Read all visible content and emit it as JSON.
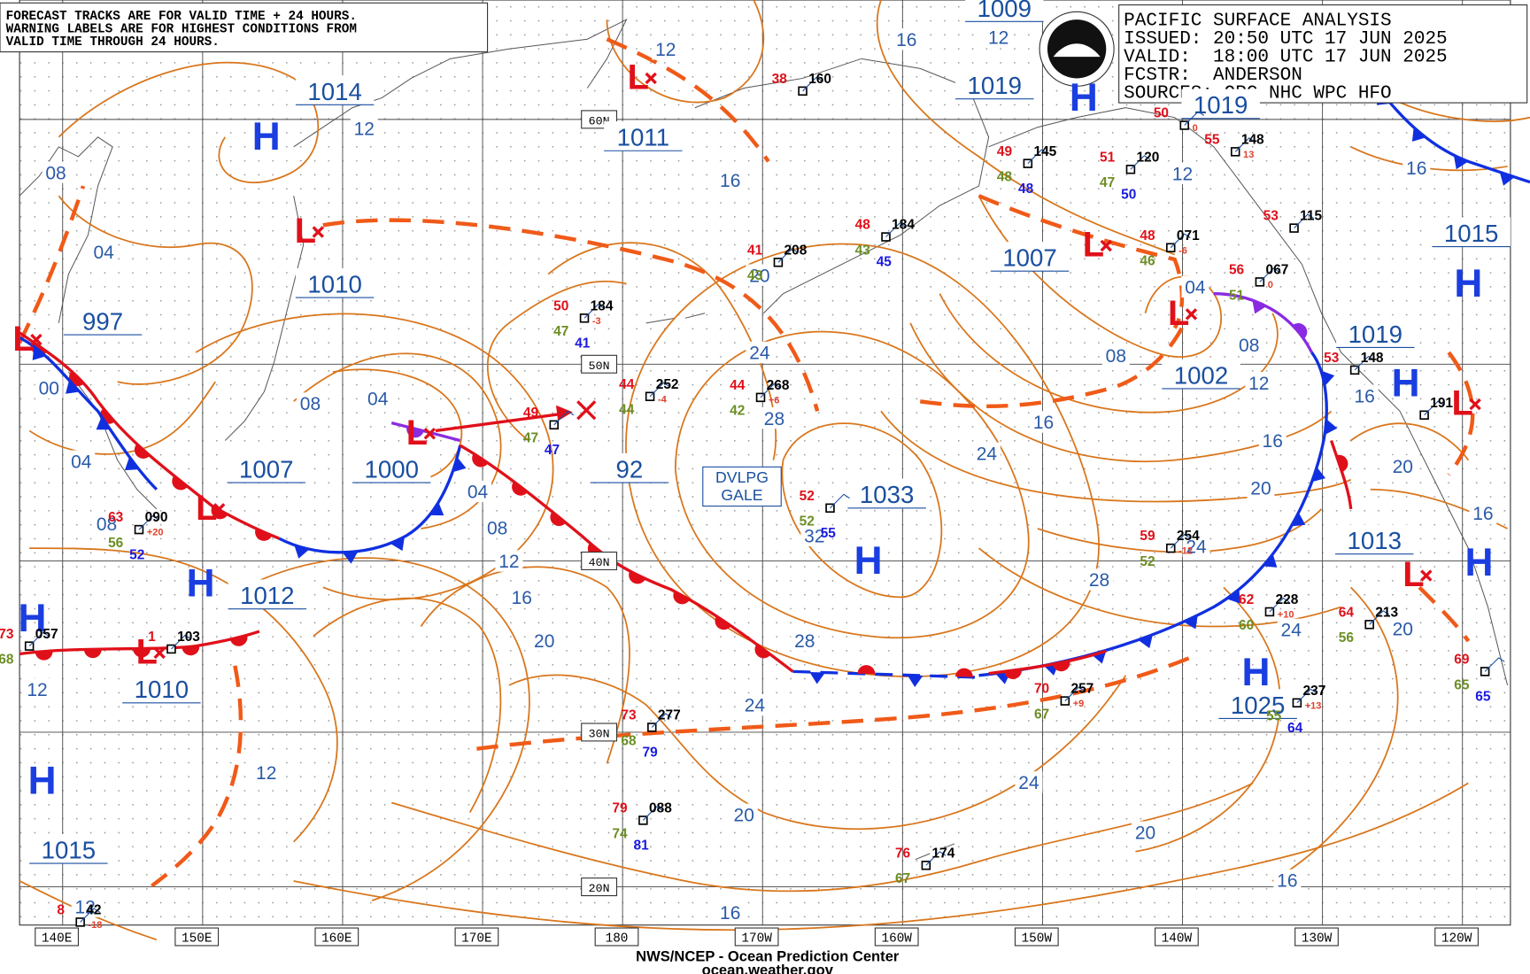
{
  "notice": {
    "lines": [
      "FORECAST TRACKS ARE FOR VALID TIME + 24 HOURS.",
      "WARNING LABELS ARE FOR HIGHEST CONDITIONS FROM",
      "VALID TIME THROUGH 24 HOURS."
    ]
  },
  "header": {
    "lines": [
      "PACIFIC SURFACE ANALYSIS",
      "ISSUED: 20:50 UTC 17 JUN 2025",
      "VALID:  18:00 UTC 17 JUN 2025",
      "FCSTR:  ANDERSON",
      "SOURCES: OPC NHC WPC HFO"
    ]
  },
  "footer": {
    "agency": "NWS/NCEP - Ocean Prediction Center",
    "url": "ocean.weather.gov"
  },
  "latitudes": [
    "60N",
    "50N",
    "40N",
    "30N",
    "20N"
  ],
  "longitudes": [
    "140E",
    "150E",
    "160E",
    "170E",
    "180",
    "170W",
    "160W",
    "150W",
    "140W",
    "130W",
    "120W"
  ],
  "pressures": [
    "1014",
    "1010",
    "997",
    "1007",
    "1000",
    "1012",
    "1010",
    "1015",
    "1011",
    "1009",
    "1019",
    "1007",
    "1002",
    "1019",
    "1015",
    "1019",
    "1013",
    "1033",
    "1025",
    "92"
  ],
  "highs": [
    "H",
    "H",
    "H",
    "H",
    "H",
    "H",
    "H",
    "H",
    "H",
    "H"
  ],
  "lows": [
    "L",
    "L",
    "L",
    "L",
    "L",
    "L",
    "L",
    "L",
    "L",
    "L"
  ],
  "isobar_labels": [
    "08",
    "04",
    "00",
    "04",
    "08",
    "12",
    "08",
    "04",
    "04",
    "08",
    "12",
    "16",
    "20",
    "12",
    "16",
    "16",
    "12",
    "20",
    "24",
    "28",
    "32",
    "28",
    "24",
    "20",
    "16",
    "24",
    "16",
    "08",
    "04",
    "08",
    "12",
    "16",
    "20",
    "24",
    "28",
    "24",
    "20",
    "20",
    "16",
    "16",
    "16",
    "12",
    "12",
    "12",
    "12",
    "24",
    "20",
    "16"
  ],
  "warning": {
    "lines": [
      "DVLPG",
      "GALE"
    ]
  },
  "stations": [
    {
      "temperature": "50",
      "pressure": "184",
      "tendency": "-3",
      "dewpoint": "47",
      "extra": "41"
    },
    {
      "temperature": "44",
      "pressure": "268",
      "tendency": "+6",
      "dewpoint": "42"
    },
    {
      "temperature": "44",
      "pressure": "252",
      "tendency": "-4",
      "dewpoint": "44"
    },
    {
      "temperature": "41",
      "pressure": "208",
      "dewpoint": "43"
    },
    {
      "temperature": "48",
      "pressure": "184",
      "dewpoint": "43",
      "extra": "45"
    },
    {
      "temperature": "38",
      "pressure": "160"
    },
    {
      "temperature": "49",
      "pressure": "145",
      "dewpoint": "48",
      "extra": "48"
    },
    {
      "temperature": "51",
      "pressure": "120",
      "dewpoint": "47",
      "extra": "50"
    },
    {
      "temperature": "48",
      "pressure": "071",
      "tendency": "-6",
      "dewpoint": "46"
    },
    {
      "temperature": "56",
      "pressure": "067",
      "tendency": "0",
      "dewpoint": "51"
    },
    {
      "temperature": "55",
      "pressure": "148",
      "tendency": "13"
    },
    {
      "temperature": "53",
      "pressure": "115"
    },
    {
      "temperature": "59",
      "pressure": "254",
      "tendency": "-12",
      "dewpoint": "52"
    },
    {
      "temperature": "62",
      "pressure": "228",
      "tendency": "+10",
      "dewpoint": "60"
    },
    {
      "temperature": "64",
      "pressure": "213",
      "dewpoint": "56"
    },
    {
      "pressure": "237",
      "tendency": "+13",
      "dewpoint": "55",
      "extra": "64"
    },
    {
      "temperature": "70",
      "pressure": "257",
      "tendency": "+9",
      "dewpoint": "67"
    },
    {
      "temperature": "73",
      "pressure": "277",
      "dewpoint": "68",
      "extra": "79"
    },
    {
      "temperature": "79",
      "pressure": "088",
      "dewpoint": "74",
      "extra": "81"
    },
    {
      "temperature": "76",
      "pressure": "174",
      "dewpoint": "67"
    },
    {
      "temperature": "49",
      "dewpoint": "47",
      "extra": "47"
    },
    {
      "temperature": "52",
      "dewpoint": "52",
      "extra": "55"
    },
    {
      "temperature": "63",
      "pressure": "090",
      "tendency": "+20",
      "dewpoint": "56",
      "extra": "52"
    },
    {
      "temperature": "1",
      "pressure": "103"
    },
    {
      "temperature": "73",
      "pressure": "057",
      "dewpoint": "68"
    },
    {
      "temperature": "8",
      "pressure": "42",
      "tendency": "-18"
    },
    {
      "temperature": "53",
      "pressure": "148"
    },
    {
      "pressure": "191"
    },
    {
      "temperature": "69",
      "dewpoint": "65",
      "extra": "65"
    },
    {
      "temperature": "50",
      "tendency": "0"
    }
  ]
}
